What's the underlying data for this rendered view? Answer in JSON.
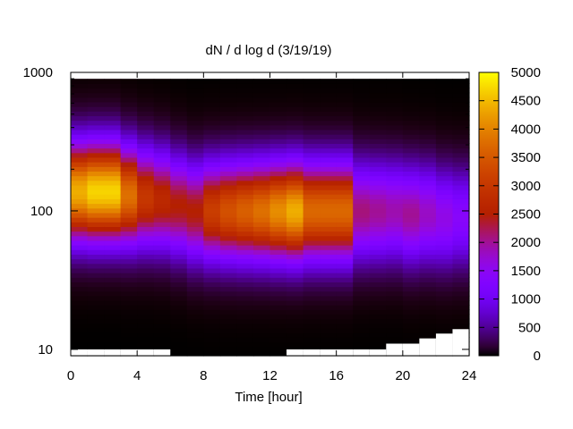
{
  "chart_data": {
    "type": "heatmap",
    "title": "dN / d log d (3/19/19)",
    "xlabel": "Time [hour]",
    "ylabel": "",
    "xlim": [
      0,
      24
    ],
    "ylim": [
      9,
      1000
    ],
    "y_scale": "log",
    "x_ticks": [
      0,
      4,
      8,
      12,
      16,
      20,
      24
    ],
    "y_ticks": [
      10,
      100,
      1000
    ],
    "colorbar": {
      "range": [
        0,
        5000
      ],
      "ticks": [
        0,
        500,
        1000,
        1500,
        2000,
        2500,
        3000,
        3500,
        4000,
        4500,
        5000
      ],
      "palette": "gnuplot black-blue-purple-red-orange-yellow"
    },
    "times": [
      0,
      1,
      2,
      3,
      4,
      5,
      6,
      7,
      8,
      9,
      10,
      11,
      12,
      13,
      14,
      15,
      16,
      17,
      18,
      19,
      20,
      21,
      22,
      23
    ],
    "peak_diameter": [
      138,
      138,
      138,
      130,
      125,
      120,
      110,
      100,
      100,
      100,
      100,
      100,
      100,
      100,
      100,
      100,
      100,
      100,
      100,
      100,
      95,
      95,
      90,
      90
    ],
    "peak_value": [
      4400,
      4700,
      4700,
      3800,
      3000,
      2700,
      2500,
      2500,
      3100,
      3400,
      3600,
      3800,
      4100,
      4400,
      3700,
      3700,
      3700,
      2100,
      2000,
      1900,
      2000,
      1800,
      1600,
      1400
    ],
    "lower_limit": [
      10,
      10,
      10,
      10,
      10,
      10,
      9,
      9,
      9,
      9,
      9,
      9,
      9,
      10,
      10,
      10,
      10,
      10,
      10,
      11,
      11,
      12,
      13,
      14
    ]
  }
}
